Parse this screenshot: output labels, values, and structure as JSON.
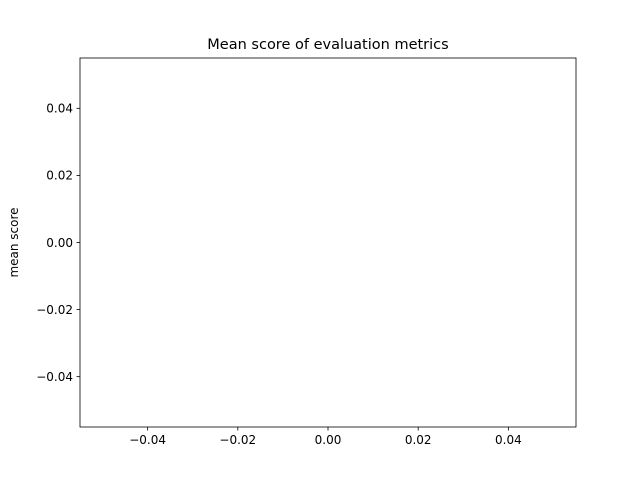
{
  "chart_data": {
    "type": "bar",
    "title": "Mean score of evaluation metrics",
    "xlabel": "",
    "ylabel": "mean score",
    "categories": [],
    "values": [],
    "xlim": [
      -0.055,
      0.055
    ],
    "ylim": [
      -0.055,
      0.055
    ],
    "xticks": [
      -0.04,
      -0.02,
      0.0,
      0.02,
      0.04
    ],
    "xtick_labels": [
      "−0.04",
      "−0.02",
      "0.00",
      "0.02",
      "0.04"
    ],
    "yticks": [
      -0.04,
      -0.02,
      0.0,
      0.02,
      0.04
    ],
    "ytick_labels": [
      "−0.04",
      "−0.02",
      "0.00",
      "0.02",
      "0.04"
    ],
    "grid": false,
    "legend": "none"
  }
}
